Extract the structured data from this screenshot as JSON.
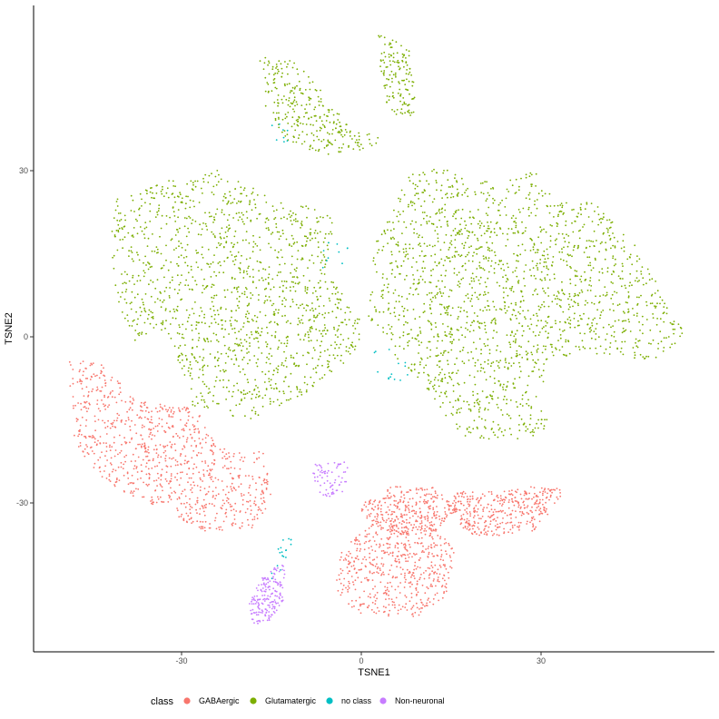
{
  "chart_data": {
    "type": "scatter",
    "title": "",
    "xlabel": "TSNE1",
    "ylabel": "TSNE2",
    "xlim": [
      -54,
      58
    ],
    "ylim": [
      -56,
      55
    ],
    "x_ticks": [
      -30,
      0,
      30
    ],
    "y_ticks": [
      -30,
      0,
      30
    ],
    "x_tick_labels": [
      "-30",
      "0",
      "30"
    ],
    "y_tick_labels": [
      "-30",
      "0",
      "30"
    ],
    "grid": false,
    "legend": {
      "title": "class",
      "position": "bottom",
      "entries": [
        "GABAergic",
        "Glutamatergic",
        "no class",
        "Non-neuronal"
      ]
    },
    "series": [
      {
        "name": "GABAergic",
        "color": "#F8766D",
        "clusters": [
          {
            "cx": -37,
            "cy": -17,
            "n": 900,
            "polygon": [
              [
                -49,
                -4
              ],
              [
                -43,
                -5
              ],
              [
                -38,
                -11
              ],
              [
                -33,
                -12
              ],
              [
                -27,
                -13
              ],
              [
                -24,
                -20
              ],
              [
                -16,
                -21
              ],
              [
                -15,
                -29
              ],
              [
                -18,
                -35
              ],
              [
                -27,
                -35
              ],
              [
                -33,
                -31
              ],
              [
                -42,
                -27
              ],
              [
                -48,
                -19
              ],
              [
                -49,
                -9
              ]
            ]
          },
          {
            "cx": 5,
            "cy": -42,
            "n": 550,
            "polygon": [
              [
                -4,
                -39
              ],
              [
                3,
                -33
              ],
              [
                12,
                -34
              ],
              [
                16,
                -39
              ],
              [
                14,
                -47
              ],
              [
                9,
                -51
              ],
              [
                0,
                -50
              ],
              [
                -4,
                -47
              ]
            ]
          },
          {
            "cx": 9,
            "cy": -30,
            "n": 300,
            "polygon": [
              [
                0,
                -30
              ],
              [
                5,
                -27
              ],
              [
                12,
                -27
              ],
              [
                16,
                -31
              ],
              [
                13,
                -35
              ],
              [
                5,
                -36
              ],
              [
                0,
                -33
              ]
            ]
          },
          {
            "cx": 23,
            "cy": -31,
            "n": 380,
            "polygon": [
              [
                15,
                -28
              ],
              [
                22,
                -28
              ],
              [
                28,
                -27
              ],
              [
                33,
                -27
              ],
              [
                34,
                -28
              ],
              [
                32,
                -31
              ],
              [
                29,
                -35
              ],
              [
                22,
                -36
              ],
              [
                18,
                -36
              ],
              [
                15,
                -32
              ]
            ]
          }
        ]
      },
      {
        "name": "Glutamatergic",
        "color": "#7CAE00",
        "clusters": [
          {
            "cx": -8,
            "cy": 46,
            "n": 280,
            "polygon": [
              [
                -17,
                51
              ],
              [
                -11,
                50
              ],
              [
                -7,
                45
              ],
              [
                -2,
                38
              ],
              [
                3,
                36
              ],
              [
                4,
                35
              ],
              [
                -2,
                33
              ],
              [
                -8,
                33
              ],
              [
                -13,
                36
              ],
              [
                -16,
                42
              ]
            ]
          },
          {
            "cx": 6,
            "cy": 48,
            "n": 140,
            "polygon": [
              [
                3,
                55
              ],
              [
                8,
                52
              ],
              [
                9,
                46
              ],
              [
                9,
                40
              ],
              [
                6,
                39
              ],
              [
                4,
                42
              ],
              [
                3,
                49
              ]
            ]
          },
          {
            "cx": -28,
            "cy": 10,
            "n": 1400,
            "polygon": [
              [
                -41,
                25
              ],
              [
                -33,
                28
              ],
              [
                -24,
                30
              ],
              [
                -15,
                25
              ],
              [
                -6,
                23
              ],
              [
                -4,
                19
              ],
              [
                -6,
                12
              ],
              [
                -2,
                7
              ],
              [
                1,
                1
              ],
              [
                -2,
                -4
              ],
              [
                -10,
                -11
              ],
              [
                -19,
                -15
              ],
              [
                -28,
                -13
              ],
              [
                -31,
                -3
              ],
              [
                -34,
                2
              ],
              [
                -38,
                -1
              ],
              [
                -41,
                8
              ],
              [
                -42,
                18
              ]
            ]
          },
          {
            "cx": 28,
            "cy": 9,
            "n": 1800,
            "polygon": [
              [
                5,
                22
              ],
              [
                7,
                29
              ],
              [
                13,
                31
              ],
              [
                18,
                28
              ],
              [
                24,
                28
              ],
              [
                29,
                30
              ],
              [
                33,
                24
              ],
              [
                38,
                25
              ],
              [
                43,
                20
              ],
              [
                47,
                15
              ],
              [
                49,
                10
              ],
              [
                52,
                4
              ],
              [
                54,
                1
              ],
              [
                50,
                -4
              ],
              [
                43,
                -4
              ],
              [
                36,
                -3
              ],
              [
                32,
                -5
              ],
              [
                29,
                -11
              ],
              [
                32,
                -17
              ],
              [
                25,
                -19
              ],
              [
                17,
                -18
              ],
              [
                14,
                -15
              ],
              [
                10,
                -8
              ],
              [
                6,
                -4
              ],
              [
                1,
                4
              ],
              [
                2,
                12
              ],
              [
                2,
                18
              ]
            ]
          }
        ]
      },
      {
        "name": "no class",
        "color": "#00BFC4",
        "clusters": [
          {
            "cx": 5,
            "cy": -5,
            "n": 14,
            "polygon": [
              [
                2,
                -2
              ],
              [
                7,
                -2
              ],
              [
                8,
                -8
              ],
              [
                3,
                -8
              ]
            ]
          },
          {
            "cx": -5,
            "cy": 15,
            "n": 10,
            "polygon": [
              [
                -8,
                17
              ],
              [
                -2,
                17
              ],
              [
                -2,
                12
              ],
              [
                -8,
                12
              ]
            ]
          },
          {
            "cx": -14,
            "cy": -40,
            "n": 18,
            "polygon": [
              [
                -13,
                -36
              ],
              [
                -11,
                -36
              ],
              [
                -14,
                -44
              ],
              [
                -16,
                -44
              ]
            ]
          },
          {
            "cx": -13,
            "cy": 37,
            "n": 8,
            "polygon": [
              [
                -15,
                39
              ],
              [
                -12,
                39
              ],
              [
                -12,
                35
              ],
              [
                -15,
                35
              ]
            ]
          }
        ]
      },
      {
        "name": "Non-neuronal",
        "color": "#C77CFF",
        "clusters": [
          {
            "cx": -16,
            "cy": -48,
            "n": 180,
            "polygon": [
              [
                -12,
                -41
              ],
              [
                -13,
                -44
              ],
              [
                -13,
                -48
              ],
              [
                -15,
                -51
              ],
              [
                -18,
                -52
              ],
              [
                -19,
                -48
              ],
              [
                -17,
                -44
              ],
              [
                -14,
                -41
              ]
            ]
          },
          {
            "cx": -4,
            "cy": -25,
            "n": 70,
            "polygon": [
              [
                -8,
                -23
              ],
              [
                -3,
                -22
              ],
              [
                -2,
                -24
              ],
              [
                -3,
                -28
              ],
              [
                -6,
                -29
              ],
              [
                -8,
                -27
              ]
            ]
          }
        ]
      }
    ]
  }
}
